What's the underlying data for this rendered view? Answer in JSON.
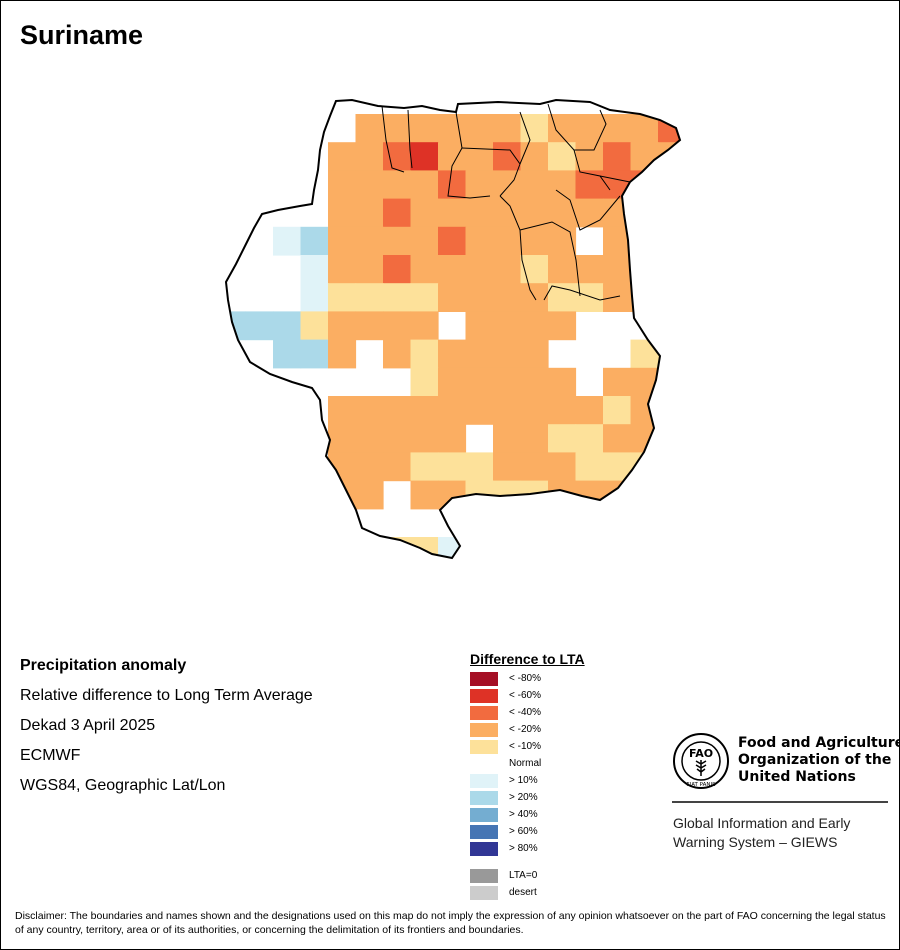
{
  "map": {
    "title": "Suriname",
    "colors": {
      "lt80": "#a50f25",
      "lt60": "#de3226",
      "lt40": "#f26b3f",
      "lt20": "#fbae62",
      "lt10": "#fde19a",
      "gt10": "#e0f3f8",
      "gt20": "#abd9e9",
      "gt40": "#74add1",
      "gt60": "#4575b4",
      "gt80": "#313695",
      "lta0": "#999999",
      "desert": "#cccccc"
    },
    "grid_note": "each row lists anomaly class per 0.25-degree cell from west to east",
    "cells": [
      {
        "row": 0,
        "col": 5,
        "cls": "lt20"
      },
      {
        "row": 0,
        "col": 7,
        "cls": "lt20"
      },
      {
        "row": 0,
        "col": 8,
        "cls": "lt10"
      },
      {
        "row": 0,
        "col": 9,
        "cls": "lt20"
      },
      {
        "row": 0,
        "col": 10,
        "cls": "lt10"
      },
      {
        "row": 0,
        "col": 11,
        "cls": "lt20"
      },
      {
        "row": 0,
        "col": 12,
        "cls": "lt40"
      },
      {
        "row": 0,
        "col": 13,
        "cls": "lt20"
      },
      {
        "row": 0,
        "col": 14,
        "cls": "lt40"
      },
      {
        "row": 0,
        "col": 15,
        "cls": "lt40"
      }
    ]
  },
  "info": {
    "line1": "Precipitation anomaly",
    "line2": "Relative difference to Long Term Average",
    "line3": "Dekad 3 April 2025",
    "line4": "ECMWF",
    "line5": "WGS84, Geographic Lat/Lon"
  },
  "legend": {
    "title": "Difference to LTA",
    "items": [
      {
        "label": "< -80%",
        "color": "#a50f25"
      },
      {
        "label": "< -60%",
        "color": "#de3226"
      },
      {
        "label": "< -40%",
        "color": "#f26b3f"
      },
      {
        "label": "< -20%",
        "color": "#fbae62"
      },
      {
        "label": "< -10%",
        "color": "#fde19a"
      },
      {
        "label": "Normal",
        "color": "#ffffff"
      },
      {
        "label": "> 10%",
        "color": "#e0f3f8"
      },
      {
        "label": "> 20%",
        "color": "#abd9e9"
      },
      {
        "label": "> 40%",
        "color": "#74add1"
      },
      {
        "label": "> 60%",
        "color": "#4575b4"
      },
      {
        "label": "> 80%",
        "color": "#313695"
      },
      {
        "label": "LTA=0",
        "color": "#999999"
      },
      {
        "label": "desert",
        "color": "#cccccc"
      }
    ]
  },
  "fao": {
    "logo_text": "FAO",
    "logo_motto": "FIAT PANIS",
    "name_line1": "Food and Agriculture",
    "name_line2": "Organization of the",
    "name_line3": "United Nations",
    "giews_line1": "Global Information and Early",
    "giews_line2": "Warning System – GIEWS"
  },
  "disclaimer": "Disclaimer: The boundaries and names shown and the designations used on this map do not imply the expression of any opinion whatsoever on the part of FAO concerning the legal status of any country, territory, area or of its authorities, or concerning the delimitation of its frontiers and boundaries."
}
